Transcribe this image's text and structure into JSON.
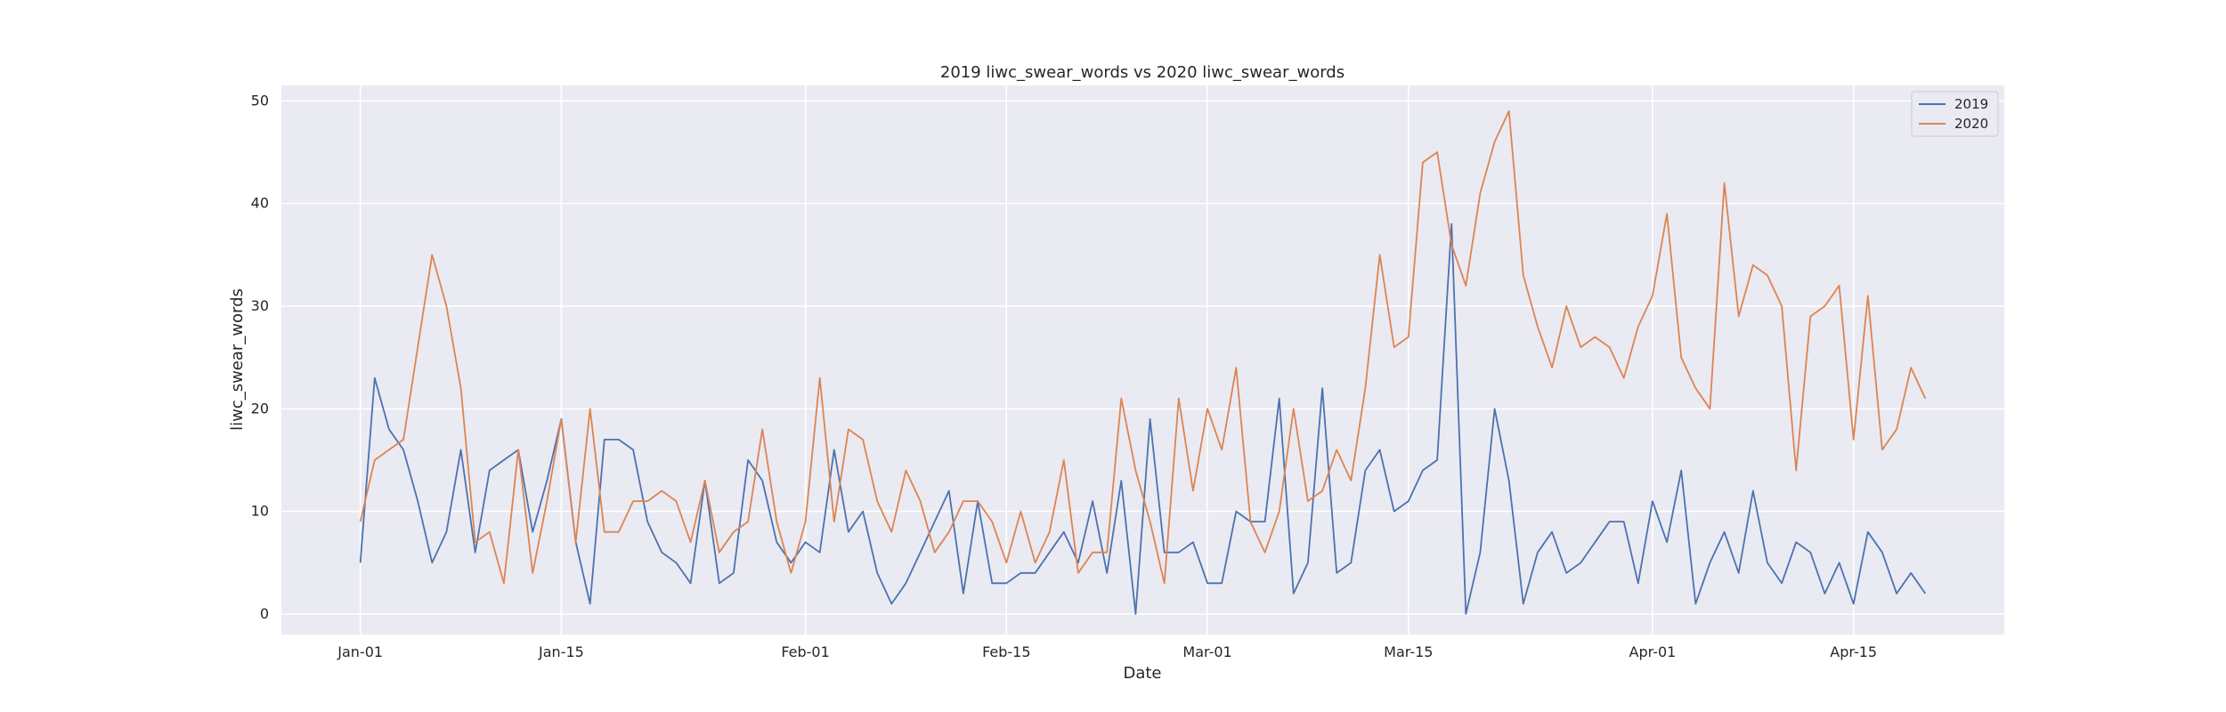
{
  "chart_data": {
    "type": "line",
    "title": "2019 liwc_swear_words vs 2020 liwc_swear_words",
    "xlabel": "Date",
    "ylabel": "liwc_swear_words",
    "x_start": "Jan-01",
    "x_ticks": [
      {
        "label": "Jan-01",
        "day": 0
      },
      {
        "label": "Jan-15",
        "day": 14
      },
      {
        "label": "Feb-01",
        "day": 31
      },
      {
        "label": "Feb-15",
        "day": 45
      },
      {
        "label": "Mar-01",
        "day": 59
      },
      {
        "label": "Mar-15",
        "day": 73
      },
      {
        "label": "Apr-01",
        "day": 90
      },
      {
        "label": "Apr-15",
        "day": 104
      }
    ],
    "y_ticks": [
      0,
      10,
      20,
      30,
      40,
      50
    ],
    "xlim": [
      -5.5,
      114.5
    ],
    "ylim": [
      -2,
      51.5
    ],
    "grid": true,
    "legend_position": "top-right",
    "series": [
      {
        "name": "2019",
        "color": "#4c72b0",
        "values": [
          5,
          23,
          18,
          16,
          11,
          5,
          8,
          16,
          6,
          14,
          15,
          16,
          8,
          13,
          19,
          7,
          1,
          17,
          17,
          16,
          9,
          6,
          5,
          3,
          13,
          3,
          4,
          15,
          13,
          7,
          5,
          7,
          6,
          16,
          8,
          10,
          4,
          1,
          3,
          6,
          9,
          12,
          2,
          11,
          3,
          3,
          4,
          4,
          6,
          8,
          5,
          11,
          4,
          13,
          0,
          19,
          6,
          6,
          7,
          3,
          3,
          10,
          9,
          9,
          21,
          2,
          5,
          22,
          4,
          5,
          14,
          16,
          10,
          11,
          14,
          15,
          38,
          0,
          6,
          20,
          13,
          1,
          6,
          8,
          4,
          5,
          7,
          9,
          9,
          3,
          11,
          7,
          14,
          1,
          5,
          8,
          4,
          12,
          5,
          3,
          7,
          6,
          2,
          5,
          1,
          8,
          6,
          2,
          4,
          2
        ]
      },
      {
        "name": "2020",
        "color": "#dd8452",
        "values": [
          9,
          15,
          16,
          17,
          26,
          35,
          30,
          22,
          7,
          8,
          3,
          16,
          4,
          11,
          19,
          7,
          20,
          8,
          8,
          11,
          11,
          12,
          11,
          7,
          13,
          6,
          8,
          9,
          18,
          9,
          4,
          9,
          23,
          9,
          18,
          17,
          11,
          8,
          14,
          11,
          6,
          8,
          11,
          11,
          9,
          5,
          10,
          5,
          8,
          15,
          4,
          6,
          6,
          21,
          14,
          9,
          3,
          21,
          12,
          20,
          16,
          24,
          9,
          6,
          10,
          20,
          11,
          12,
          16,
          13,
          22,
          35,
          26,
          27,
          44,
          45,
          36,
          32,
          41,
          46,
          49,
          33,
          28,
          24,
          30,
          26,
          27,
          26,
          23,
          28,
          31,
          39,
          25,
          22,
          20,
          42,
          29,
          34,
          33,
          30,
          14,
          29,
          30,
          32,
          17,
          31,
          16,
          18,
          24,
          21
        ]
      }
    ]
  }
}
